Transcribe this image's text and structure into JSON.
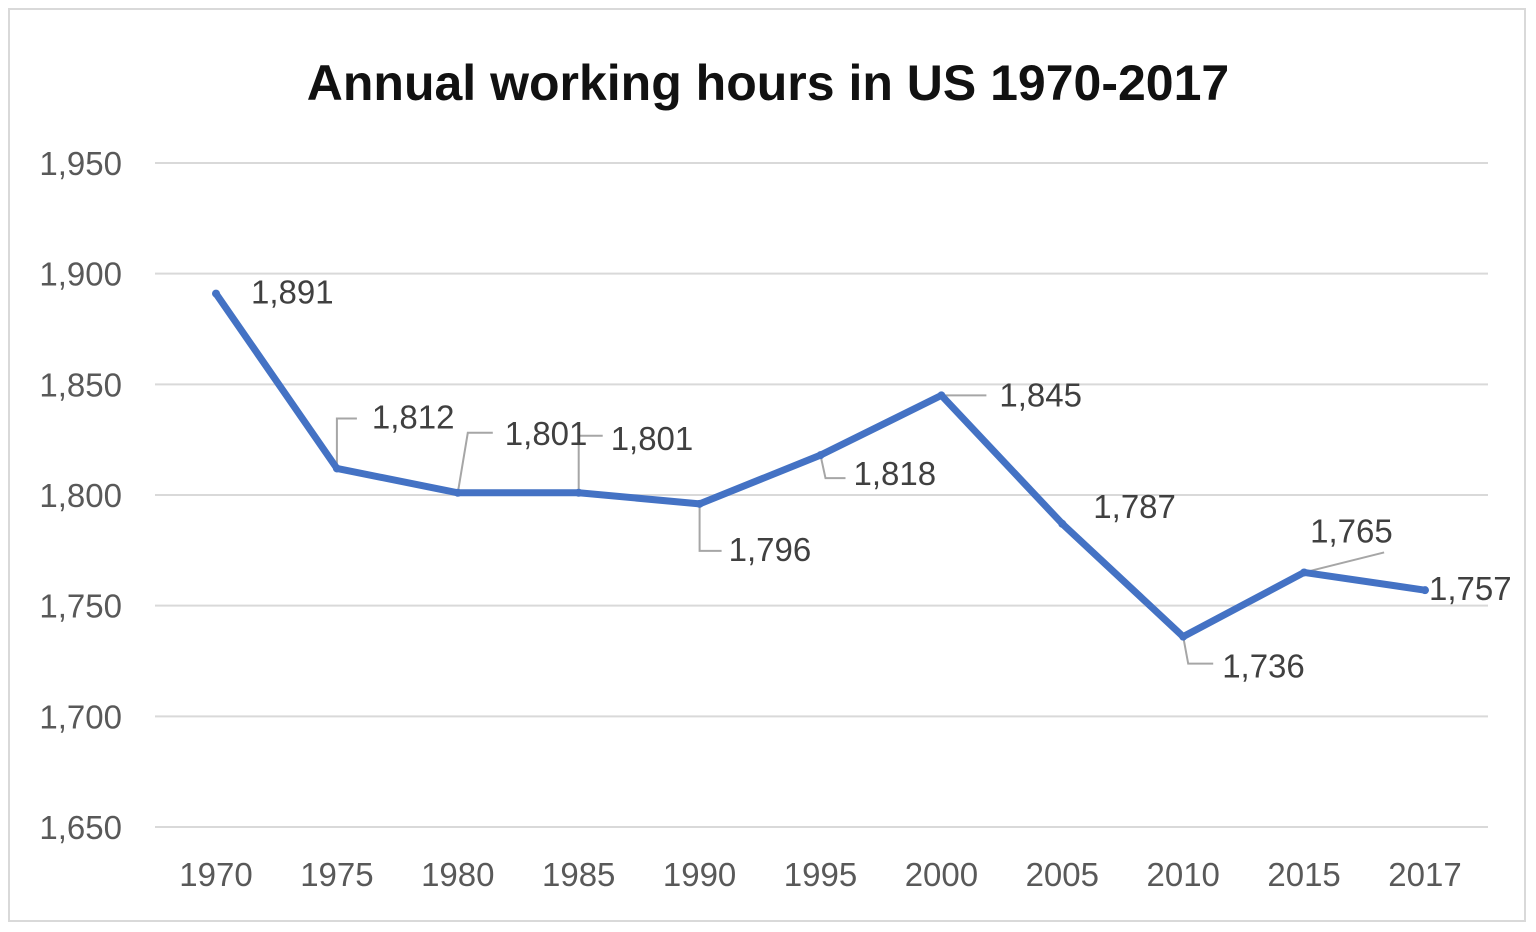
{
  "chart_data": {
    "type": "line",
    "title": "Annual working hours in US 1970-2017",
    "xlabel": "",
    "ylabel": "",
    "categories": [
      "1970",
      "1975",
      "1980",
      "1985",
      "1990",
      "1995",
      "2000",
      "2005",
      "2010",
      "2015",
      "2017"
    ],
    "series": [
      {
        "name": "Annual working hours",
        "values": [
          1891,
          1812,
          1801,
          1801,
          1796,
          1818,
          1845,
          1787,
          1736,
          1765,
          1757
        ],
        "data_labels": [
          "1,891",
          "1,812",
          "1,801",
          "1,801",
          "1,796",
          "1,818",
          "1,845",
          "1,787",
          "1,736",
          "1,765",
          "1,757"
        ]
      }
    ],
    "ylim": [
      1650,
      1950
    ],
    "yticks": [
      1650,
      1700,
      1750,
      1800,
      1850,
      1900,
      1950
    ],
    "ytick_labels": [
      "1,650",
      "1,700",
      "1,750",
      "1,800",
      "1,850",
      "1,900",
      "1,950"
    ],
    "grid": true,
    "legend": "none",
    "colors": {
      "series": "#4472c4",
      "grid": "#d9d9d9",
      "axis_text": "#595959"
    }
  }
}
